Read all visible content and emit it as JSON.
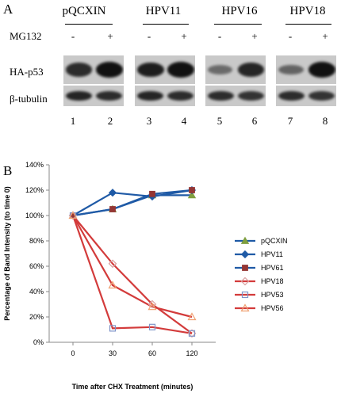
{
  "panel_a": {
    "letter": "A",
    "treatment_label": "MG132",
    "groups": [
      {
        "name": "pQCXIN",
        "minus": "-",
        "plus": "+"
      },
      {
        "name": "HPV11",
        "minus": "-",
        "plus": "+"
      },
      {
        "name": "HPV16",
        "minus": "-",
        "plus": "+"
      },
      {
        "name": "HPV18",
        "minus": "-",
        "plus": "+"
      }
    ],
    "row_labels": [
      "HA-p53",
      "β-tubulin"
    ],
    "lanes": [
      "1",
      "2",
      "3",
      "4",
      "5",
      "6",
      "7",
      "8"
    ],
    "ha_p53_band_strength": [
      0.8,
      1.0,
      0.9,
      1.0,
      0.35,
      0.85,
      0.4,
      1.0
    ],
    "tubulin_band_strength": [
      0.85,
      0.8,
      0.85,
      0.8,
      0.8,
      0.75,
      0.8,
      0.75
    ]
  },
  "panel_b": {
    "letter": "B"
  },
  "chart_data": {
    "type": "line",
    "xlabel": "Time after CHX Treatment (minutes)",
    "ylabel": "Percentage of Band Intensity (to time 0)",
    "categories": [
      "0",
      "30",
      "60",
      "120"
    ],
    "y_ticks": [
      "0%",
      "20%",
      "40%",
      "60%",
      "80%",
      "100%",
      "120%",
      "140%"
    ],
    "ylim": [
      0,
      140
    ],
    "grid": false,
    "legend_position": "right",
    "series": [
      {
        "name": "pQCXIN",
        "values": [
          100,
          105,
          116,
          116
        ],
        "color": "#1f5aa6",
        "marker": "triangle",
        "marker_color": "#7f9f3f",
        "filled": true
      },
      {
        "name": "HPV11",
        "values": [
          100,
          118,
          115,
          120
        ],
        "color": "#1f5aa6",
        "marker": "diamond",
        "marker_color": "#1f5aa6",
        "filled": true
      },
      {
        "name": "HPV61",
        "values": [
          100,
          105,
          117,
          120
        ],
        "color": "#1f5aa6",
        "marker": "square",
        "marker_color": "#943634",
        "filled": true
      },
      {
        "name": "HPV18",
        "values": [
          100,
          62,
          30,
          7
        ],
        "color": "#d33b3b",
        "marker": "diamond",
        "marker_color": "#d9a0a0",
        "filled": false
      },
      {
        "name": "HPV53",
        "values": [
          100,
          11,
          12,
          7
        ],
        "color": "#d33b3b",
        "marker": "square",
        "marker_color": "#8095c8",
        "filled": false
      },
      {
        "name": "HPV56",
        "values": [
          100,
          45,
          28,
          20
        ],
        "color": "#d33b3b",
        "marker": "triangle",
        "marker_color": "#f0a070",
        "filled": false
      }
    ]
  }
}
